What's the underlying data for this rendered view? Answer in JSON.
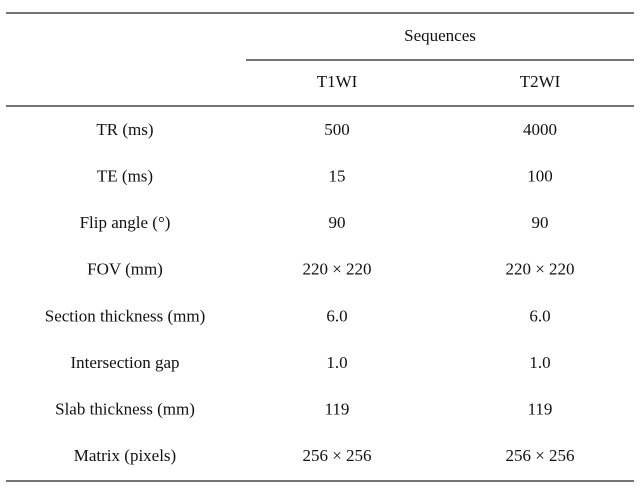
{
  "table": {
    "group_header": "Sequences",
    "columns": [
      "T1WI",
      "T2WI"
    ],
    "rows": [
      [
        "TR (ms)",
        "500",
        "4000"
      ],
      [
        "TE (ms)",
        "15",
        "100"
      ],
      [
        "Flip angle (°)",
        "90",
        "90"
      ],
      [
        "FOV (mm)",
        "220 × 220",
        "220 × 220"
      ],
      [
        "Section thickness (mm)",
        "6.0",
        "6.0"
      ],
      [
        "Intersection gap",
        "1.0",
        "1.0"
      ],
      [
        "Slab thickness (mm)",
        "119",
        "119"
      ],
      [
        "Matrix (pixels)",
        "256 × 256",
        "256 × 256"
      ]
    ]
  }
}
